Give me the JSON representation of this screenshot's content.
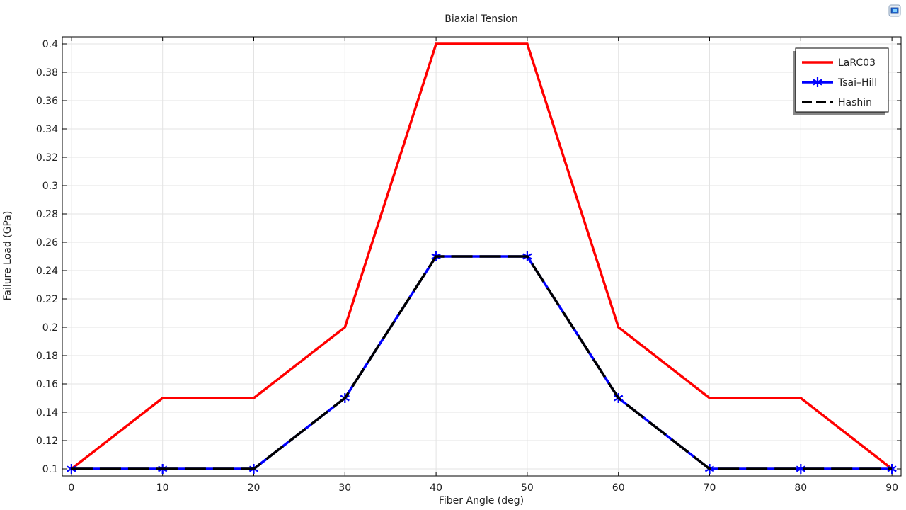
{
  "chart_data": {
    "type": "line",
    "title": "Biaxial Tension",
    "xlabel": "Fiber Angle (deg)",
    "ylabel": "Failure Load (GPa)",
    "xlim": [
      -1,
      91
    ],
    "ylim": [
      0.095,
      0.405
    ],
    "xticks": [
      0,
      10,
      20,
      30,
      40,
      50,
      60,
      70,
      80,
      90
    ],
    "yticks": [
      0.1,
      0.12,
      0.14,
      0.16,
      0.18,
      0.2,
      0.22,
      0.24,
      0.26,
      0.28,
      0.3,
      0.32,
      0.34,
      0.36,
      0.38,
      0.4
    ],
    "ytick_labels": [
      "0.1",
      "0.12",
      "0.14",
      "0.16",
      "0.18",
      "0.2",
      "0.22",
      "0.24",
      "0.26",
      "0.28",
      "0.3",
      "0.32",
      "0.34",
      "0.36",
      "0.38",
      "0.4"
    ],
    "grid": true,
    "legend_position": "top-right",
    "x": [
      0,
      10,
      20,
      30,
      40,
      50,
      60,
      70,
      80,
      90
    ],
    "series": [
      {
        "name": "LaRC03",
        "color": "#ff0000",
        "style": "solid",
        "marker": "none",
        "values": [
          0.1,
          0.15,
          0.15,
          0.2,
          0.4,
          0.4,
          0.2,
          0.15,
          0.15,
          0.1
        ]
      },
      {
        "name": "Tsai–Hill",
        "color": "#0000ff",
        "style": "solid",
        "marker": "asterisk",
        "values": [
          0.1,
          0.1,
          0.1,
          0.15,
          0.25,
          0.25,
          0.15,
          0.1,
          0.1,
          0.1
        ]
      },
      {
        "name": "Hashin",
        "color": "#000000",
        "style": "dashed",
        "marker": "none",
        "values": [
          0.1,
          0.1,
          0.1,
          0.15,
          0.25,
          0.25,
          0.15,
          0.1,
          0.1,
          0.1
        ]
      }
    ]
  },
  "toolbar": {
    "icon": "plot-settings-icon"
  }
}
